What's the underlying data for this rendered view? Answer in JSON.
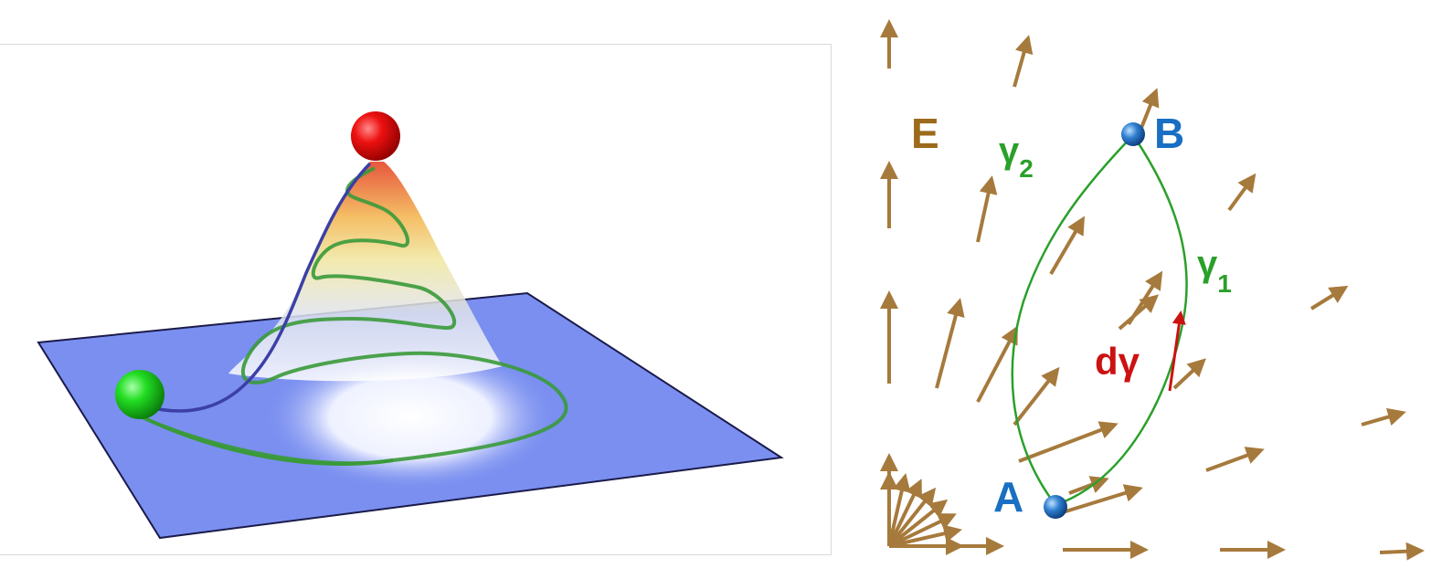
{
  "left_figure": {
    "colors": {
      "plane_fill": "#7a8ff0",
      "plane_stroke": "#1b1b4a",
      "start_ball": "#22dd22",
      "peak_ball": "#ee1111",
      "paths_green": "#3a9a3a",
      "path_blue": "#3b3fa6"
    },
    "shapes": [
      "plane",
      "cone-surface",
      "start-sphere",
      "peak-sphere",
      "green-spiral-path",
      "blue-direct-path"
    ]
  },
  "right_figure": {
    "labels": {
      "field": "E",
      "point_a": "A",
      "point_b": "B",
      "gamma": "γ",
      "gamma1_sub": "1",
      "gamma2_sub": "2",
      "dgamma": "dγ"
    },
    "colors": {
      "field_arrows": "#a67a3c",
      "field_label": "#9c6a1a",
      "curves": "#2aa02a",
      "point_label": "#1a6fc2",
      "dgamma": "#cc1111"
    },
    "field_vector_count": 26
  }
}
